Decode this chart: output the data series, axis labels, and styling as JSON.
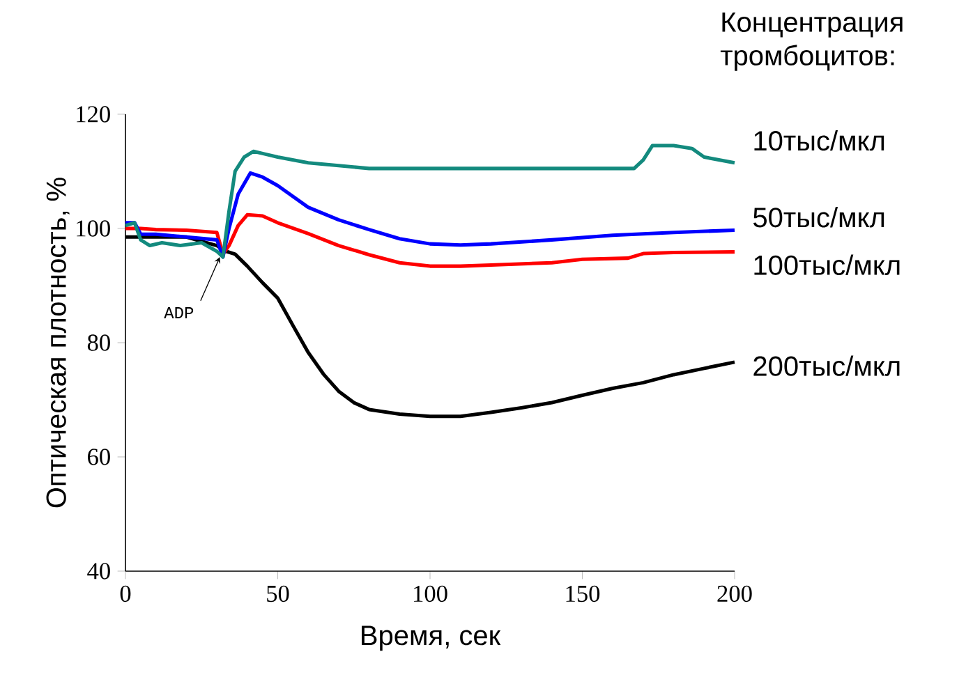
{
  "chart_data": {
    "type": "line",
    "xlabel": "Время, сек",
    "ylabel": "Оптическая плотность, %",
    "legend_title": "Концентрация тромбоцитов:",
    "xlim": [
      0,
      200
    ],
    "ylim": [
      40,
      120
    ],
    "xticks": [
      0,
      50,
      100,
      150,
      200
    ],
    "yticks": [
      40,
      60,
      80,
      100,
      120
    ],
    "line_style": "solid",
    "annotations": [
      {
        "text": "ADP",
        "x": 31,
        "y": 95
      }
    ],
    "series": [
      {
        "name": "10тыс/мкл",
        "color": "#138a7e",
        "x": [
          0,
          3,
          5,
          8,
          12,
          18,
          25,
          30,
          32,
          34,
          36,
          39,
          42,
          46,
          50,
          60,
          70,
          80,
          100,
          120,
          140,
          160,
          167,
          170,
          173,
          180,
          186,
          190,
          195,
          200
        ],
        "values": [
          100.5,
          101,
          98,
          97,
          97.5,
          97,
          97.5,
          96,
          95,
          103,
          110,
          112.5,
          113.5,
          113,
          112.5,
          111.5,
          111,
          110.5,
          110.5,
          110.5,
          110.5,
          110.5,
          110.5,
          112,
          114.5,
          114.5,
          114,
          112.5,
          112,
          111.5
        ]
      },
      {
        "name": "50тыс/мкл",
        "color": "#0000ff",
        "x": [
          0,
          3,
          5,
          10,
          20,
          30,
          32,
          34,
          37,
          41,
          45,
          50,
          60,
          70,
          80,
          90,
          100,
          110,
          120,
          140,
          160,
          180,
          200
        ],
        "values": [
          101,
          101,
          99,
          99,
          98.5,
          98,
          95,
          100,
          106,
          109.7,
          109,
          107.5,
          103.7,
          101.5,
          99.8,
          98.2,
          97.3,
          97.1,
          97.3,
          98,
          98.8,
          99.3,
          99.7
        ]
      },
      {
        "name": "100тыс/мкл",
        "color": "#ff0000",
        "x": [
          0,
          5,
          10,
          20,
          30,
          32,
          34,
          37,
          40,
          45,
          50,
          60,
          70,
          80,
          90,
          100,
          110,
          120,
          140,
          150,
          165,
          170,
          180,
          200
        ],
        "values": [
          100,
          100,
          99.8,
          99.7,
          99.3,
          95.5,
          97,
          100.5,
          102.4,
          102.2,
          101,
          99.1,
          97,
          95.4,
          94,
          93.4,
          93.4,
          93.6,
          94,
          94.6,
          94.8,
          95.6,
          95.8,
          95.9
        ]
      },
      {
        "name": "200тыс/мкл",
        "color": "#000000",
        "x": [
          0,
          10,
          20,
          30,
          33,
          36,
          40,
          45,
          50,
          55,
          60,
          65,
          70,
          75,
          80,
          90,
          100,
          110,
          120,
          130,
          140,
          150,
          160,
          170,
          180,
          190,
          200
        ],
        "values": [
          98.5,
          98.5,
          98.5,
          97,
          96,
          95.5,
          93.4,
          90.5,
          87.8,
          83,
          78.3,
          74.5,
          71.5,
          69.5,
          68.3,
          67.5,
          67.1,
          67.1,
          67.8,
          68.6,
          69.5,
          70.8,
          72,
          73,
          74.4,
          75.5,
          76.6
        ]
      }
    ]
  }
}
